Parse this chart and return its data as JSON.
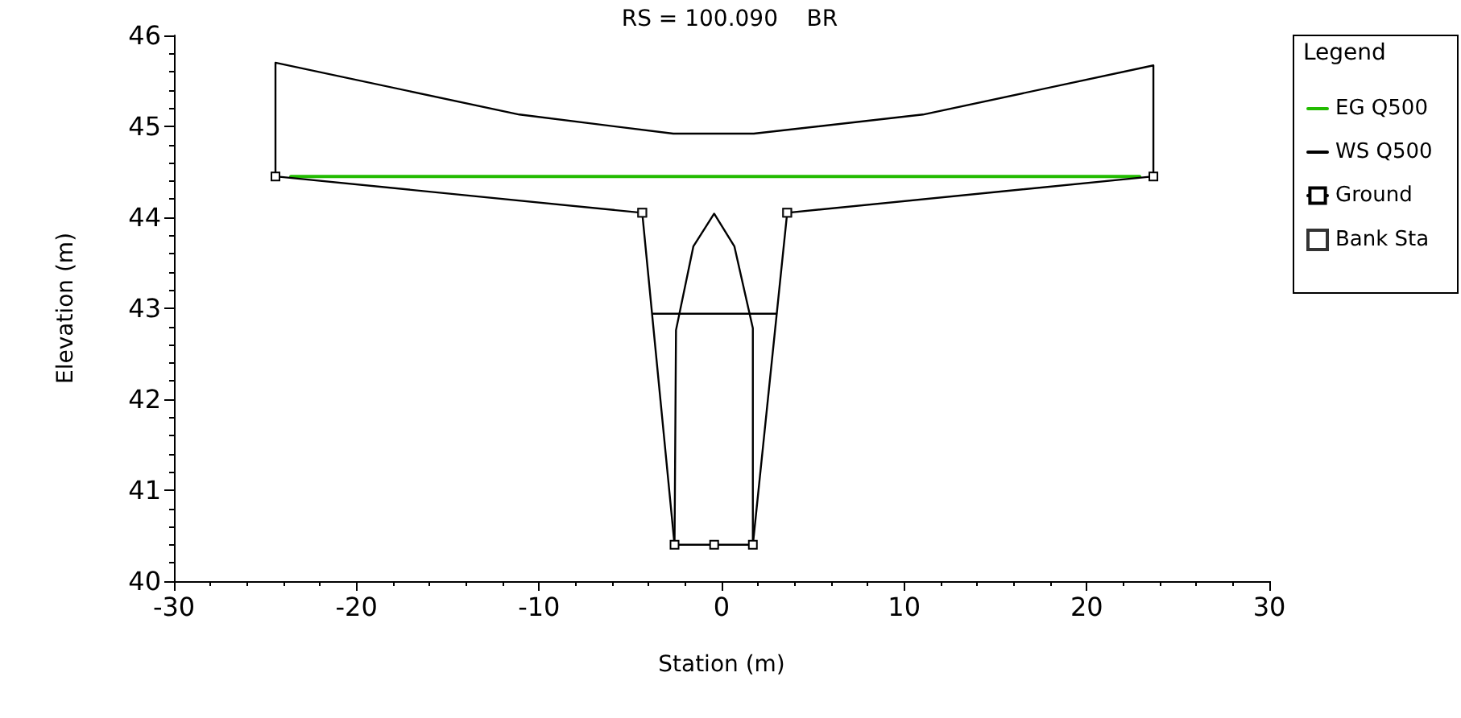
{
  "chart_data": {
    "type": "line",
    "title": "RS = 100.090    BR",
    "xlabel": "Station (m)",
    "ylabel": "Elevation (m)",
    "legend_title": "Legend",
    "xlim": [
      -30,
      30
    ],
    "xticks": [
      -30,
      -20,
      -10,
      0,
      10,
      20,
      30
    ],
    "ylim": [
      40,
      46
    ],
    "yticks": [
      40,
      41,
      42,
      43,
      44,
      45,
      46
    ],
    "grid": false,
    "legend": "right",
    "line_style": "solid",
    "series": [
      {
        "name": "EG Q500",
        "color": "#22bb00",
        "marker": "none",
        "x": [
          -23.6,
          22.9
        ],
        "values": [
          44.45,
          44.45
        ]
      },
      {
        "name": "WS Q500",
        "color": "#000000",
        "marker": "none",
        "x": [
          -3.75,
          3.0
        ],
        "values": [
          42.94,
          42.94
        ]
      },
      {
        "name": "Ground",
        "color": "#000000",
        "marker": "square",
        "x": [
          -24.44,
          -4.35,
          -2.58,
          -0.41,
          1.71,
          3.59,
          23.65
        ],
        "values": [
          44.45,
          44.05,
          40.4,
          40.4,
          40.4,
          44.05,
          44.45
        ]
      },
      {
        "name": "Bank Sta",
        "type": "scatter",
        "color": "#000000",
        "marker": "square",
        "x": [
          -4.35,
          3.59
        ],
        "values": [
          44.05,
          44.05
        ]
      },
      {
        "color": "#000000",
        "marker": "none",
        "x": [
          -24.44,
          -24.44,
          -11.08,
          -2.65,
          1.76,
          11.03,
          23.65,
          23.65
        ],
        "values": [
          44.45,
          45.7,
          45.13,
          44.92,
          44.92,
          45.13,
          45.67,
          44.45
        ]
      },
      {
        "color": "#000000",
        "marker": "none",
        "x": [
          -2.58,
          -2.5,
          -1.55,
          -0.41,
          0.7,
          1.71,
          1.71
        ],
        "values": [
          40.4,
          42.76,
          43.68,
          44.04,
          43.68,
          42.78,
          40.4
        ]
      }
    ]
  }
}
